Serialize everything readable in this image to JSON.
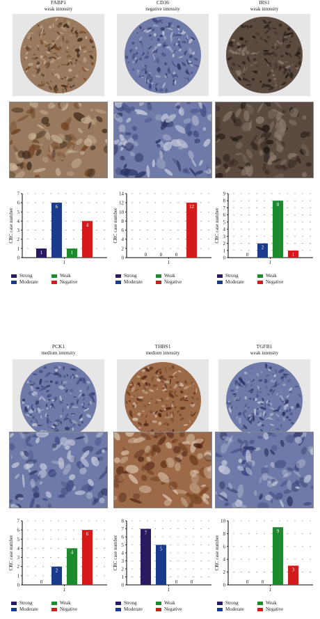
{
  "colors": {
    "strong": "#2a1a5e",
    "moderate": "#1a3a8c",
    "weak": "#1e8a2e",
    "negative": "#d41a1a"
  },
  "legend": [
    "Strong",
    "Weak",
    "Moderate",
    "Negative"
  ],
  "panels": [
    {
      "gene": "FABP1",
      "intensity": "weak intensity",
      "stain": "brown-mixed"
    },
    {
      "gene": "CD36",
      "intensity": "negative intensity",
      "stain": "blue"
    },
    {
      "gene": "IRS1",
      "intensity": "weak intensity",
      "stain": "dark-brown"
    },
    {
      "gene": "PCK1",
      "intensity": "medium intensity",
      "stain": "blue"
    },
    {
      "gene": "THBS1",
      "intensity": "medium intensity",
      "stain": "brown"
    },
    {
      "gene": "TGFB1",
      "intensity": "weak intensity",
      "stain": "blue"
    }
  ],
  "chart_data": [
    {
      "type": "bar",
      "categories": [
        "1"
      ],
      "ylabel": "CRC case number",
      "ylim": [
        0,
        7
      ],
      "yticks": [
        0,
        1,
        2,
        3,
        4,
        5,
        6,
        7
      ],
      "series": [
        {
          "name": "Strong",
          "values": [
            1
          ]
        },
        {
          "name": "Moderate",
          "values": [
            6
          ]
        },
        {
          "name": "Weak",
          "values": [
            1
          ]
        },
        {
          "name": "Negative",
          "values": [
            4
          ]
        }
      ],
      "data_labels": [
        "1",
        "6",
        "1",
        "4"
      ]
    },
    {
      "type": "bar",
      "categories": [
        "1"
      ],
      "ylabel": "CRC case number",
      "ylim": [
        0,
        14
      ],
      "yticks": [
        0,
        2,
        4,
        6,
        8,
        10,
        12,
        14
      ],
      "series": [
        {
          "name": "Strong",
          "values": [
            0
          ]
        },
        {
          "name": "Moderate",
          "values": [
            0
          ]
        },
        {
          "name": "Weak",
          "values": [
            0
          ]
        },
        {
          "name": "Negative",
          "values": [
            12
          ]
        }
      ],
      "data_labels": [
        "0",
        "0",
        "0",
        "12"
      ]
    },
    {
      "type": "bar",
      "categories": [
        "1"
      ],
      "ylabel": "CRC case number",
      "ylim": [
        0,
        9
      ],
      "yticks": [
        0,
        1,
        2,
        3,
        4,
        5,
        6,
        7,
        8,
        9
      ],
      "series": [
        {
          "name": "Strong",
          "values": [
            0
          ]
        },
        {
          "name": "Moderate",
          "values": [
            2
          ]
        },
        {
          "name": "Weak",
          "values": [
            8
          ]
        },
        {
          "name": "Negative",
          "values": [
            1
          ]
        }
      ],
      "data_labels": [
        "0",
        "2",
        "8",
        "1"
      ]
    },
    {
      "type": "bar",
      "categories": [
        "1"
      ],
      "ylabel": "CRC case number",
      "ylim": [
        0,
        7
      ],
      "yticks": [
        0,
        1,
        2,
        3,
        4,
        5,
        6,
        7
      ],
      "series": [
        {
          "name": "Strong",
          "values": [
            0
          ]
        },
        {
          "name": "Moderate",
          "values": [
            2
          ]
        },
        {
          "name": "Weak",
          "values": [
            4
          ]
        },
        {
          "name": "Negative",
          "values": [
            6
          ]
        }
      ],
      "data_labels": [
        "0",
        "2",
        "4",
        "6"
      ]
    },
    {
      "type": "bar",
      "categories": [
        "1"
      ],
      "ylabel": "CRC case number",
      "ylim": [
        0,
        8
      ],
      "yticks": [
        0,
        1,
        2,
        3,
        4,
        5,
        6,
        7,
        8
      ],
      "series": [
        {
          "name": "Strong",
          "values": [
            7
          ]
        },
        {
          "name": "Moderate",
          "values": [
            5
          ]
        },
        {
          "name": "Weak",
          "values": [
            0
          ]
        },
        {
          "name": "Negative",
          "values": [
            0
          ]
        }
      ],
      "data_labels": [
        "7",
        "5",
        "0",
        "0"
      ]
    },
    {
      "type": "bar",
      "categories": [
        "1"
      ],
      "ylabel": "CRC case number",
      "ylim": [
        0,
        10
      ],
      "yticks": [
        0,
        2,
        4,
        6,
        8,
        10
      ],
      "series": [
        {
          "name": "Strong",
          "values": [
            0
          ]
        },
        {
          "name": "Moderate",
          "values": [
            0
          ]
        },
        {
          "name": "Weak",
          "values": [
            9
          ]
        },
        {
          "name": "Negative",
          "values": [
            3
          ]
        }
      ],
      "data_labels": [
        "0",
        "0",
        "9",
        "3"
      ]
    }
  ]
}
